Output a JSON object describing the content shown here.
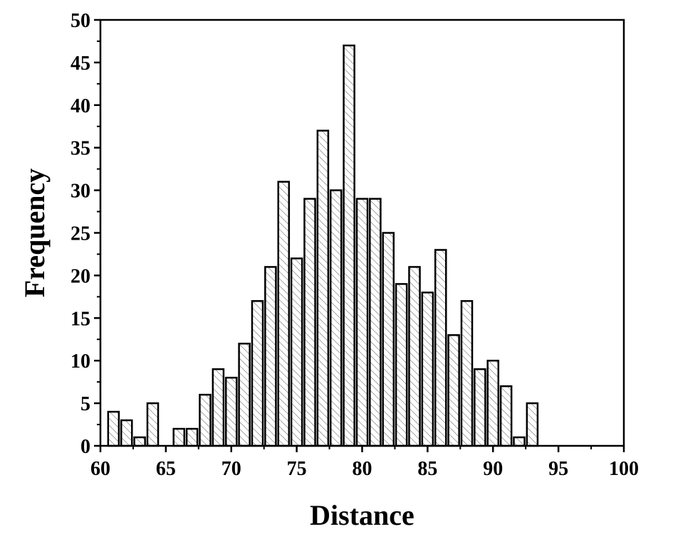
{
  "chart_data": {
    "type": "bar",
    "title": "",
    "xlabel": "Distance",
    "ylabel": "Frequency",
    "xlim": [
      60,
      100
    ],
    "ylim": [
      0,
      50
    ],
    "x_ticks": [
      60,
      65,
      70,
      75,
      80,
      85,
      90,
      95,
      100
    ],
    "y_ticks": [
      0,
      5,
      10,
      15,
      20,
      25,
      30,
      35,
      40,
      45,
      50
    ],
    "grid": false,
    "legend": "none",
    "bar_style": "diagonal hatch",
    "x": [
      61,
      62,
      63,
      64,
      65,
      66,
      67,
      68,
      69,
      70,
      71,
      72,
      73,
      74,
      75,
      76,
      77,
      78,
      79,
      80,
      81,
      82,
      83,
      84,
      85,
      86,
      87,
      88,
      89,
      90,
      91,
      92,
      93
    ],
    "values": [
      4,
      3,
      1,
      5,
      0,
      2,
      2,
      6,
      9,
      8,
      12,
      17,
      21,
      31,
      22,
      29,
      37,
      30,
      47,
      29,
      29,
      25,
      19,
      21,
      18,
      23,
      13,
      17,
      9,
      10,
      7,
      1,
      5
    ]
  }
}
